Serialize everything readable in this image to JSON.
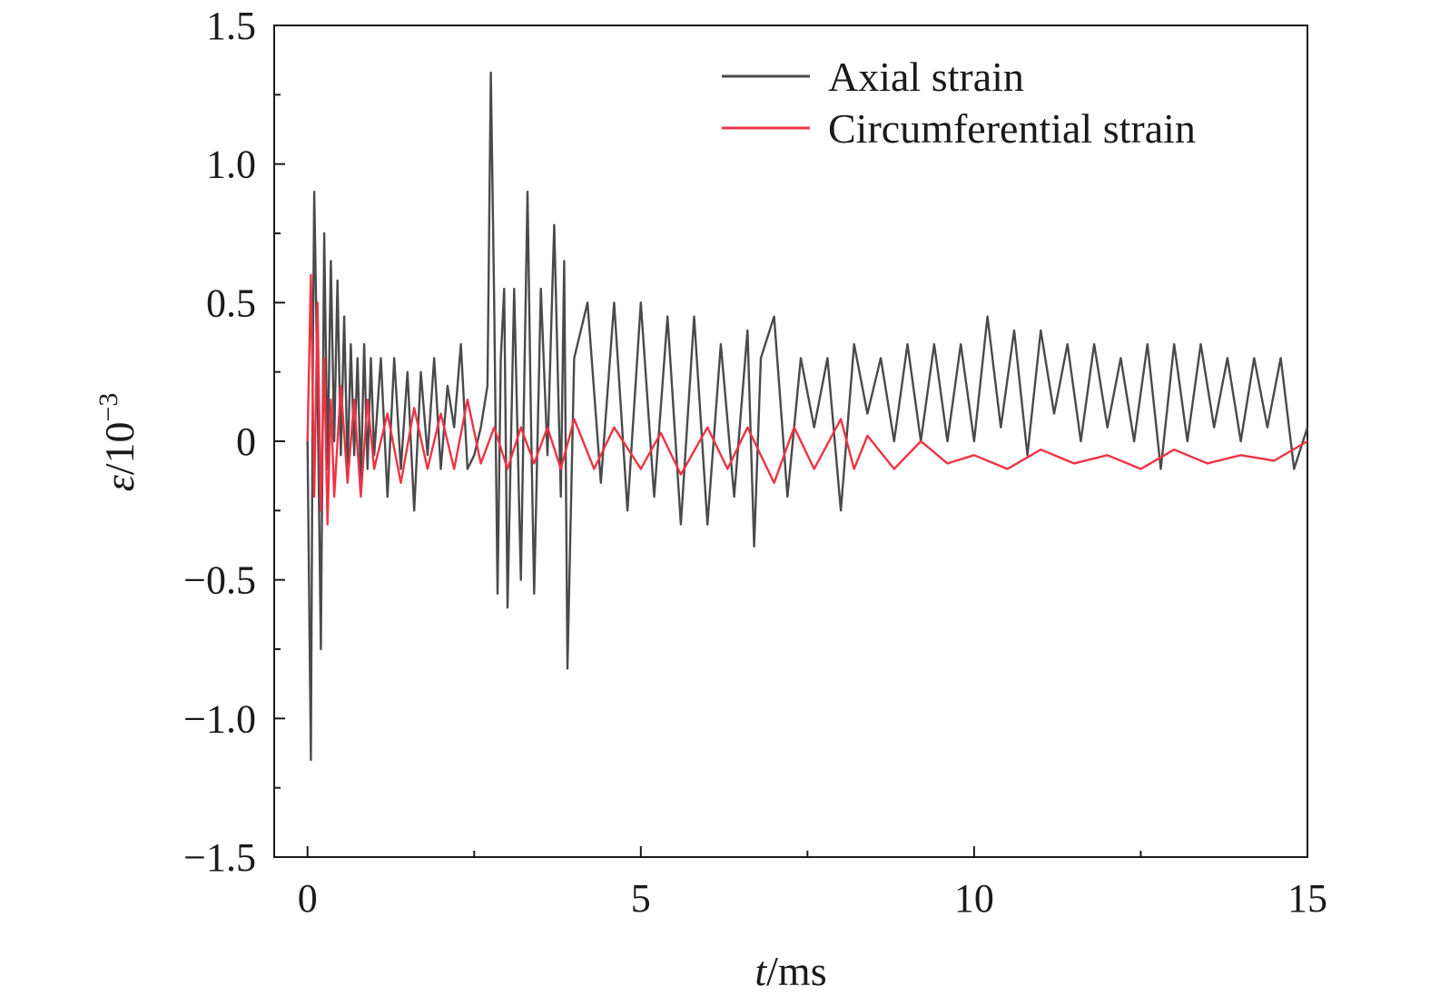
{
  "chart_data": {
    "type": "line",
    "xlabel": {
      "italic": "t",
      "rest": "/ms"
    },
    "ylabel": {
      "italic": "ε",
      "rest": "/10",
      "sup": "−3"
    },
    "xlim": [
      -0.5,
      15
    ],
    "ylim": [
      -1.5,
      1.5
    ],
    "xticks": [
      0,
      5,
      10,
      15
    ],
    "xtick_labels": [
      "0",
      "5",
      "10",
      "15"
    ],
    "yticks": [
      -1.5,
      -1.0,
      -0.5,
      0,
      0.5,
      1.0,
      1.5
    ],
    "ytick_labels": [
      "−1.5",
      "−1.0",
      "−0.5",
      "0",
      "0.5",
      "1.0",
      "1.5"
    ],
    "grid": false,
    "legend_position": "top-right",
    "series": [
      {
        "name": "Axial strain",
        "color": "#4a4a4a",
        "x": [
          0.0,
          0.05,
          0.08,
          0.1,
          0.15,
          0.2,
          0.25,
          0.3,
          0.35,
          0.4,
          0.45,
          0.5,
          0.55,
          0.6,
          0.65,
          0.7,
          0.75,
          0.8,
          0.85,
          0.9,
          0.95,
          1.0,
          1.1,
          1.2,
          1.3,
          1.4,
          1.5,
          1.6,
          1.7,
          1.8,
          1.9,
          2.0,
          2.1,
          2.2,
          2.3,
          2.4,
          2.5,
          2.6,
          2.7,
          2.75,
          2.8,
          2.85,
          2.9,
          2.95,
          3.0,
          3.1,
          3.2,
          3.3,
          3.35,
          3.4,
          3.5,
          3.6,
          3.7,
          3.8,
          3.85,
          3.9,
          4.0,
          4.2,
          4.4,
          4.6,
          4.8,
          5.0,
          5.2,
          5.4,
          5.6,
          5.8,
          6.0,
          6.2,
          6.4,
          6.6,
          6.7,
          6.8,
          7.0,
          7.2,
          7.4,
          7.6,
          7.8,
          8.0,
          8.2,
          8.4,
          8.6,
          8.8,
          9.0,
          9.2,
          9.4,
          9.6,
          9.8,
          10.0,
          10.2,
          10.4,
          10.6,
          10.8,
          11.0,
          11.2,
          11.4,
          11.6,
          11.8,
          12.0,
          12.2,
          12.4,
          12.6,
          12.8,
          13.0,
          13.2,
          13.4,
          13.6,
          13.8,
          14.0,
          14.2,
          14.4,
          14.6,
          14.8,
          15.0
        ],
        "values": [
          0.0,
          -1.15,
          0.3,
          0.9,
          0.2,
          -0.75,
          0.75,
          -0.1,
          0.65,
          0.0,
          0.58,
          -0.05,
          0.45,
          -0.1,
          0.35,
          -0.05,
          0.3,
          -0.15,
          0.35,
          -0.1,
          0.3,
          -0.05,
          0.3,
          -0.2,
          0.3,
          -0.1,
          0.25,
          -0.25,
          0.25,
          -0.05,
          0.3,
          -0.1,
          0.2,
          0.05,
          0.35,
          -0.1,
          -0.05,
          0.05,
          0.2,
          1.33,
          0.5,
          -0.55,
          0.3,
          0.55,
          -0.6,
          0.55,
          -0.5,
          0.9,
          0.1,
          -0.55,
          0.55,
          -0.05,
          0.78,
          -0.2,
          0.65,
          -0.82,
          0.3,
          0.5,
          -0.15,
          0.5,
          -0.25,
          0.5,
          -0.2,
          0.45,
          -0.3,
          0.45,
          -0.3,
          0.35,
          -0.2,
          0.4,
          -0.38,
          0.3,
          0.45,
          -0.2,
          0.3,
          0.05,
          0.3,
          -0.25,
          0.35,
          0.1,
          0.3,
          0.0,
          0.35,
          0.0,
          0.35,
          0.0,
          0.35,
          0.0,
          0.45,
          0.05,
          0.4,
          -0.05,
          0.4,
          0.1,
          0.35,
          0.0,
          0.35,
          0.05,
          0.3,
          0.0,
          0.35,
          -0.1,
          0.35,
          0.0,
          0.35,
          0.05,
          0.3,
          0.0,
          0.3,
          0.05,
          0.3,
          -0.1,
          0.05
        ]
      },
      {
        "name": "Circumferential strain",
        "color": "#ee3344",
        "x": [
          0.0,
          0.05,
          0.1,
          0.15,
          0.2,
          0.25,
          0.3,
          0.35,
          0.4,
          0.5,
          0.6,
          0.7,
          0.8,
          0.9,
          1.0,
          1.2,
          1.4,
          1.6,
          1.8,
          2.0,
          2.2,
          2.4,
          2.6,
          2.8,
          3.0,
          3.2,
          3.4,
          3.6,
          3.8,
          4.0,
          4.3,
          4.6,
          5.0,
          5.3,
          5.6,
          6.0,
          6.3,
          6.6,
          7.0,
          7.3,
          7.6,
          8.0,
          8.2,
          8.4,
          8.8,
          9.2,
          9.6,
          10.0,
          10.5,
          11.0,
          11.5,
          12.0,
          12.5,
          13.0,
          13.5,
          14.0,
          14.5,
          15.0
        ],
        "values": [
          0.0,
          0.6,
          -0.2,
          0.5,
          -0.25,
          0.3,
          -0.3,
          0.15,
          -0.2,
          0.2,
          -0.15,
          0.15,
          -0.2,
          0.15,
          -0.1,
          0.1,
          -0.15,
          0.12,
          -0.1,
          0.1,
          -0.1,
          0.15,
          -0.08,
          0.05,
          -0.1,
          0.05,
          -0.08,
          0.05,
          -0.1,
          0.08,
          -0.1,
          0.05,
          -0.1,
          0.03,
          -0.12,
          0.05,
          -0.1,
          0.05,
          -0.15,
          0.05,
          -0.1,
          0.08,
          -0.1,
          0.02,
          -0.1,
          0.0,
          -0.08,
          -0.05,
          -0.1,
          -0.03,
          -0.08,
          -0.05,
          -0.1,
          -0.03,
          -0.08,
          -0.05,
          -0.07,
          0.0
        ]
      }
    ]
  }
}
